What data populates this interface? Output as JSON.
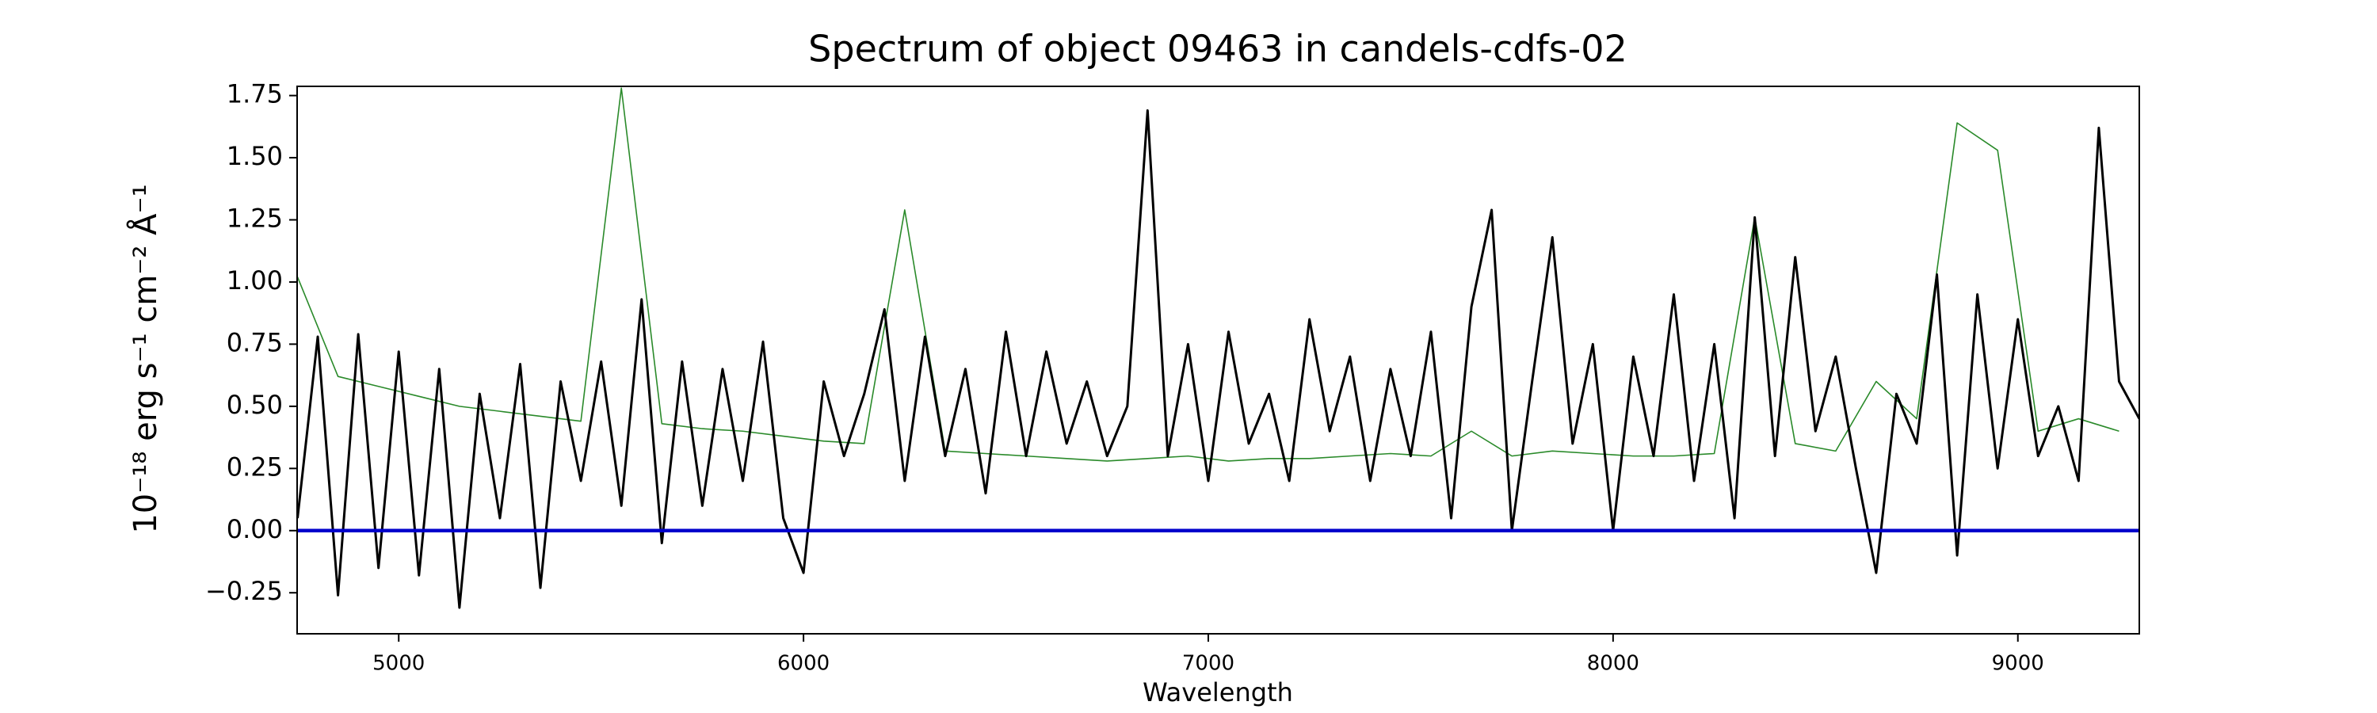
{
  "chart_data": {
    "type": "line",
    "title": "Spectrum of object 09463 in candels-cdfs-02",
    "x_label": "Wavelength",
    "y_label": "10⁻¹⁸ erg s⁻¹ cm⁻² Å⁻¹",
    "xlim": [
      4749,
      9300
    ],
    "ylim": [
      -0.415,
      1.787
    ],
    "xticks": [
      5000,
      6000,
      7000,
      8000,
      9000
    ],
    "yticks": [
      {
        "value": -0.25,
        "label": "−0.25"
      },
      {
        "value": 0,
        "label": "0.00"
      },
      {
        "value": 0.25,
        "label": "0.25"
      },
      {
        "value": 0.5,
        "label": "0.50"
      },
      {
        "value": 0.75,
        "label": "0.75"
      },
      {
        "value": 1,
        "label": "1.00"
      },
      {
        "value": 1.25,
        "label": "1.25"
      },
      {
        "value": 1.5,
        "label": "1.50"
      },
      {
        "value": 1.75,
        "label": "1.75"
      }
    ],
    "grid": false,
    "series": [
      {
        "color": "#2a8a2a",
        "width": 1.6,
        "x": [
          4750,
          4850,
          4950,
          5050,
          5150,
          5250,
          5350,
          5450,
          5550,
          5650,
          5750,
          5850,
          5950,
          6050,
          6150,
          6250,
          6350,
          6450,
          6550,
          6650,
          6750,
          6850,
          6950,
          7050,
          7150,
          7250,
          7350,
          7450,
          7550,
          7650,
          7750,
          7850,
          7950,
          8050,
          8150,
          8250,
          8350,
          8450,
          8550,
          8650,
          8750,
          8850,
          8950,
          9050,
          9150,
          9250
        ],
        "values": [
          1.02,
          0.62,
          0.58,
          0.54,
          0.5,
          0.48,
          0.46,
          0.44,
          1.78,
          0.43,
          0.41,
          0.4,
          0.38,
          0.36,
          0.35,
          1.29,
          0.32,
          0.31,
          0.3,
          0.29,
          0.28,
          0.29,
          0.3,
          0.28,
          0.29,
          0.29,
          0.3,
          0.31,
          0.3,
          0.4,
          0.3,
          0.32,
          0.31,
          0.3,
          0.3,
          0.31,
          1.26,
          0.35,
          0.32,
          0.6,
          0.45,
          1.64,
          1.53,
          0.4,
          0.45,
          0.4
        ]
      },
      {
        "color": "#000000",
        "width": 3,
        "x": [
          4750,
          4800,
          4850,
          4900,
          4950,
          5000,
          5050,
          5100,
          5150,
          5200,
          5250,
          5300,
          5350,
          5400,
          5450,
          5500,
          5550,
          5600,
          5650,
          5700,
          5750,
          5800,
          5850,
          5900,
          5950,
          6000,
          6050,
          6100,
          6150,
          6200,
          6250,
          6300,
          6350,
          6400,
          6450,
          6500,
          6550,
          6600,
          6650,
          6700,
          6750,
          6800,
          6850,
          6900,
          6950,
          7000,
          7050,
          7100,
          7150,
          7200,
          7250,
          7300,
          7350,
          7400,
          7450,
          7500,
          7550,
          7600,
          7650,
          7700,
          7750,
          7800,
          7850,
          7900,
          7950,
          8000,
          8050,
          8100,
          8150,
          8200,
          8250,
          8300,
          8350,
          8400,
          8450,
          8500,
          8550,
          8600,
          8650,
          8700,
          8750,
          8800,
          8850,
          8900,
          8950,
          9000,
          9050,
          9100,
          9150,
          9200,
          9250,
          9300
        ],
        "values": [
          0.05,
          0.78,
          -0.26,
          0.79,
          -0.15,
          0.72,
          -0.18,
          0.65,
          -0.31,
          0.55,
          0.05,
          0.67,
          -0.23,
          0.6,
          0.2,
          0.68,
          0.1,
          0.93,
          -0.05,
          0.68,
          0.1,
          0.65,
          0.2,
          0.76,
          0.05,
          -0.17,
          0.6,
          0.3,
          0.55,
          0.89,
          0.2,
          0.78,
          0.3,
          0.65,
          0.15,
          0.8,
          0.3,
          0.72,
          0.35,
          0.6,
          0.3,
          0.5,
          1.69,
          0.3,
          0.75,
          0.2,
          0.8,
          0.35,
          0.55,
          0.2,
          0.85,
          0.4,
          0.7,
          0.2,
          0.65,
          0.3,
          0.8,
          0.05,
          0.9,
          1.29,
          0.0,
          0.6,
          1.18,
          0.35,
          0.75,
          0.0,
          0.7,
          0.3,
          0.95,
          0.2,
          0.75,
          0.05,
          1.26,
          0.3,
          1.1,
          0.4,
          0.7,
          0.25,
          -0.17,
          0.55,
          0.35,
          1.03,
          -0.1,
          0.95,
          0.25,
          0.85,
          0.3,
          0.5,
          0.2,
          1.62,
          0.6,
          0.45
        ]
      },
      {
        "color": "#0000cc",
        "width": 4.5,
        "x": [
          4749,
          9300
        ],
        "values": [
          0,
          0
        ]
      }
    ]
  }
}
